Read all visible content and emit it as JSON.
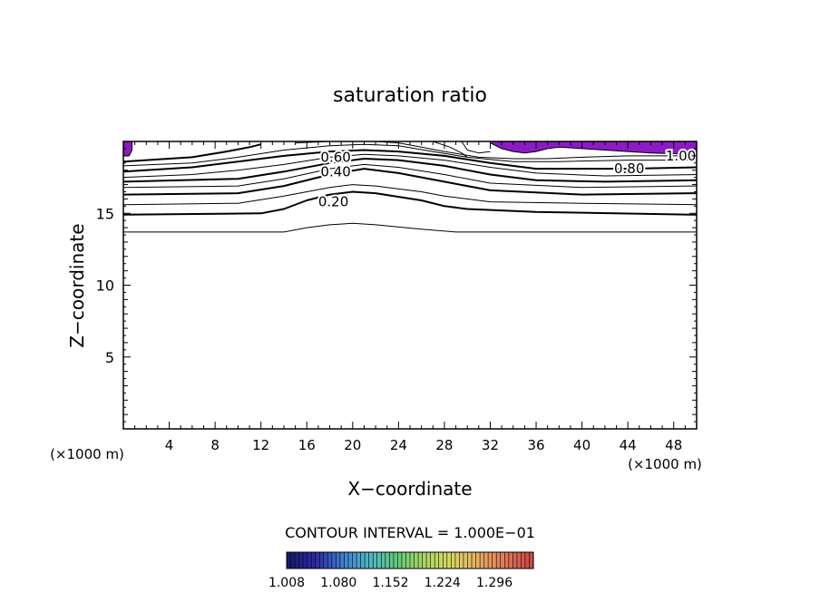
{
  "chart_data": {
    "type": "contour",
    "title": "saturation ratio",
    "xlabel": "X−coordinate",
    "ylabel": "Z−coordinate",
    "x_unit_left": "(×1000 m)",
    "x_unit_right": "(×1000 m)",
    "xlim": [
      0,
      50
    ],
    "ylim": [
      0,
      20
    ],
    "xticks": [
      4,
      8,
      12,
      16,
      20,
      24,
      28,
      32,
      36,
      40,
      44,
      48
    ],
    "yticks": [
      5,
      10,
      15
    ],
    "contour_interval_text": "CONTOUR INTERVAL = 1.000E−01",
    "contour_labels": [
      {
        "text": "0.60",
        "x": 17.2,
        "z": 18.9
      },
      {
        "text": "0.40",
        "x": 17.2,
        "z": 17.9
      },
      {
        "text": "0.20",
        "x": 17.0,
        "z": 15.8
      },
      {
        "text": "0.80",
        "x": 42.8,
        "z": 18.1
      },
      {
        "text": "1.00",
        "x": 47.3,
        "z": 19.0
      }
    ],
    "contours": [
      {
        "level": 0.1,
        "bold": false,
        "points": [
          [
            0,
            13.7
          ],
          [
            14,
            13.7
          ],
          [
            16,
            14.0
          ],
          [
            18,
            14.2
          ],
          [
            20,
            14.3
          ],
          [
            22,
            14.2
          ],
          [
            26,
            13.9
          ],
          [
            29,
            13.7
          ],
          [
            50,
            13.7
          ]
        ]
      },
      {
        "level": 0.15,
        "bold": true,
        "points": [
          [
            0,
            14.9
          ],
          [
            12,
            15.0
          ],
          [
            14,
            15.3
          ],
          [
            16,
            15.9
          ],
          [
            18,
            16.3
          ],
          [
            20,
            16.5
          ],
          [
            22,
            16.4
          ],
          [
            26,
            15.9
          ],
          [
            28,
            15.5
          ],
          [
            30,
            15.3
          ],
          [
            36,
            15.1
          ],
          [
            50,
            14.9
          ]
        ]
      },
      {
        "level": 0.3,
        "bold": false,
        "points": [
          [
            0,
            15.6
          ],
          [
            10,
            15.7
          ],
          [
            14,
            16.2
          ],
          [
            18,
            16.8
          ],
          [
            20,
            17.0
          ],
          [
            22,
            16.9
          ],
          [
            26,
            16.5
          ],
          [
            28,
            16.2
          ],
          [
            32,
            15.8
          ],
          [
            40,
            15.7
          ],
          [
            50,
            15.6
          ]
        ]
      },
      {
        "level": 0.4,
        "bold": true,
        "points": [
          [
            0,
            16.3
          ],
          [
            10,
            16.4
          ],
          [
            14,
            16.9
          ],
          [
            18,
            17.7
          ],
          [
            21,
            18.1
          ],
          [
            24,
            17.8
          ],
          [
            28,
            17.2
          ],
          [
            32,
            16.6
          ],
          [
            40,
            16.3
          ],
          [
            50,
            16.4
          ]
        ]
      },
      {
        "level": 0.5,
        "bold": false,
        "points": [
          [
            0,
            16.8
          ],
          [
            10,
            16.9
          ],
          [
            14,
            17.4
          ],
          [
            18,
            18.1
          ],
          [
            21,
            18.4
          ],
          [
            24,
            18.2
          ],
          [
            28,
            17.7
          ],
          [
            32,
            17.1
          ],
          [
            40,
            16.8
          ],
          [
            50,
            16.9
          ]
        ]
      },
      {
        "level": 0.6,
        "bold": true,
        "points": [
          [
            0,
            17.2
          ],
          [
            10,
            17.4
          ],
          [
            14,
            17.9
          ],
          [
            18,
            18.5
          ],
          [
            21,
            18.8
          ],
          [
            24,
            18.7
          ],
          [
            28,
            18.3
          ],
          [
            32,
            17.7
          ],
          [
            36,
            17.3
          ],
          [
            42,
            17.2
          ],
          [
            50,
            17.3
          ]
        ]
      },
      {
        "level": 0.7,
        "bold": false,
        "points": [
          [
            0,
            17.5
          ],
          [
            6,
            17.7
          ],
          [
            10,
            18.0
          ],
          [
            14,
            18.4
          ],
          [
            18,
            18.9
          ],
          [
            21,
            19.1
          ],
          [
            24,
            19.0
          ],
          [
            28,
            18.7
          ],
          [
            32,
            18.2
          ],
          [
            36,
            17.8
          ],
          [
            42,
            17.6
          ],
          [
            50,
            17.7
          ]
        ]
      },
      {
        "level": 0.8,
        "bold": true,
        "points": [
          [
            0,
            17.9
          ],
          [
            6,
            18.2
          ],
          [
            10,
            18.6
          ],
          [
            14,
            19.0
          ],
          [
            18,
            19.3
          ],
          [
            21,
            19.4
          ],
          [
            24,
            19.3
          ],
          [
            28,
            19.0
          ],
          [
            32,
            18.5
          ],
          [
            36,
            18.1
          ],
          [
            40,
            18.1
          ],
          [
            44,
            18.1
          ],
          [
            50,
            18.2
          ]
        ]
      },
      {
        "level": 0.9,
        "bold": false,
        "points": [
          [
            0,
            18.3
          ],
          [
            6,
            18.5
          ],
          [
            10,
            18.9
          ],
          [
            14,
            19.4
          ],
          [
            18,
            19.7
          ],
          [
            21,
            19.8
          ],
          [
            24,
            19.7
          ],
          [
            27,
            19.3
          ],
          [
            30,
            18.9
          ],
          [
            34,
            18.6
          ],
          [
            38,
            18.6
          ],
          [
            44,
            18.7
          ],
          [
            50,
            18.7
          ]
        ]
      },
      {
        "level": 1.0,
        "bold": true,
        "points": [
          [
            0,
            18.6
          ],
          [
            6,
            18.9
          ],
          [
            9,
            19.3
          ],
          [
            11,
            19.6
          ],
          [
            12,
            19.8
          ]
        ]
      },
      {
        "level": 1.0,
        "bold": false,
        "points": [
          [
            15,
            19.9
          ],
          [
            18,
            20.0
          ],
          [
            22,
            20.0
          ],
          [
            24,
            19.9
          ],
          [
            26,
            19.6
          ],
          [
            28,
            19.3
          ],
          [
            31,
            18.9
          ],
          [
            34,
            18.8
          ],
          [
            37,
            18.8
          ],
          [
            40,
            18.9
          ],
          [
            44,
            19.0
          ],
          [
            50,
            19.0
          ]
        ]
      },
      {
        "level": 0.95,
        "bold": false,
        "points": [
          [
            27,
            20.0
          ],
          [
            28.5,
            19.6
          ],
          [
            29.5,
            19.2
          ],
          [
            30,
            18.9
          ]
        ]
      },
      {
        "level": 0.95,
        "bold": false,
        "points": [
          [
            29.5,
            20.0
          ],
          [
            30,
            19.4
          ],
          [
            31,
            19.2
          ],
          [
            32,
            19.3
          ]
        ]
      }
    ],
    "supersaturated_regions": [
      {
        "points": [
          [
            0,
            20
          ],
          [
            0.75,
            20
          ],
          [
            0.75,
            19.4
          ],
          [
            0.5,
            19.0
          ],
          [
            0,
            19.0
          ]
        ]
      },
      {
        "points": [
          [
            32,
            20
          ],
          [
            50,
            20
          ],
          [
            50,
            19.1
          ],
          [
            46,
            19.2
          ],
          [
            44,
            19.3
          ],
          [
            42,
            19.4
          ],
          [
            40,
            19.5
          ],
          [
            38,
            19.6
          ],
          [
            37,
            19.5
          ],
          [
            36,
            19.3
          ],
          [
            35,
            19.2
          ],
          [
            34,
            19.3
          ],
          [
            33,
            19.5
          ],
          [
            32.5,
            19.7
          ],
          [
            32,
            19.9
          ]
        ]
      }
    ],
    "region_color": "#8c1bc4",
    "colorbar": {
      "labels": [
        "1.008",
        "1.080",
        "1.152",
        "1.224",
        "1.296"
      ],
      "min": 1.008,
      "max": 1.35,
      "colors": [
        "#1a1a6b",
        "#2a2aa8",
        "#3f7fd0",
        "#4fb8c8",
        "#63c97a",
        "#a8d86a",
        "#d8d860",
        "#e8b060",
        "#e07a5a",
        "#c84a48"
      ]
    }
  }
}
